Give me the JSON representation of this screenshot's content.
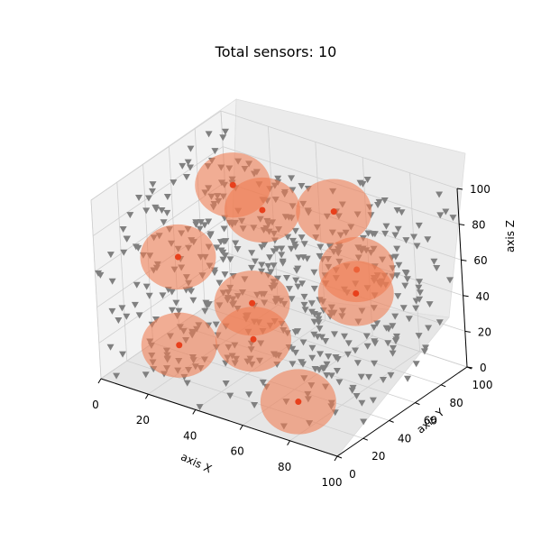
{
  "chart_data": {
    "type": "scatter",
    "title": "Total sensors: 10",
    "xlabel": "axis X",
    "ylabel": "axis Y",
    "zlabel": "axis Z",
    "xlim": [
      0,
      100
    ],
    "ylim": [
      0,
      100
    ],
    "zlim": [
      0,
      100
    ],
    "x_ticks": [
      "0",
      "20",
      "40",
      "60",
      "80",
      "100"
    ],
    "y_ticks": [
      "0",
      "20",
      "40",
      "60",
      "80",
      "100"
    ],
    "z_ticks": [
      "0",
      "20",
      "40",
      "60",
      "80",
      "100"
    ],
    "grid": true,
    "sensor_color": "#e8401c",
    "sphere_color": "#f07a50",
    "point_color": "#808080",
    "point_marker": "triangle-down",
    "sensors": [
      {
        "x": 15,
        "y": 80,
        "z": 75
      },
      {
        "x": 30,
        "y": 75,
        "z": 70
      },
      {
        "x": 55,
        "y": 85,
        "z": 75
      },
      {
        "x": 10,
        "y": 45,
        "z": 50
      },
      {
        "x": 78,
        "y": 60,
        "z": 65
      },
      {
        "x": 80,
        "y": 55,
        "z": 55
      },
      {
        "x": 35,
        "y": 55,
        "z": 30
      },
      {
        "x": 20,
        "y": 25,
        "z": 15
      },
      {
        "x": 70,
        "y": 25,
        "z": 5
      },
      {
        "x": 62,
        "y": 8,
        "z": 45
      }
    ],
    "sensor_radius": 20
  }
}
